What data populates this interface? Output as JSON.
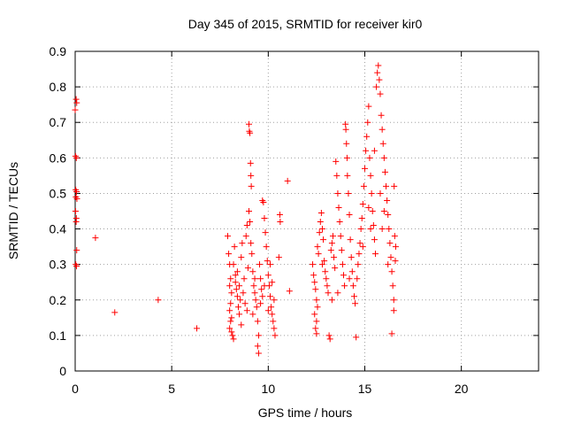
{
  "chart_data": {
    "type": "scatter",
    "title": "Day 345 of 2015, SRMTID for receiver kir0",
    "xlabel": "GPS time / hours",
    "ylabel": "SRMTID / TECUs",
    "xlim": [
      0,
      24
    ],
    "ylim": [
      0,
      0.9
    ],
    "xticks": [
      0,
      5,
      10,
      15,
      20
    ],
    "yticks": [
      0,
      0.1,
      0.2,
      0.3,
      0.4,
      0.5,
      0.6,
      0.7,
      0.8,
      0.9
    ],
    "xtick_labels": [
      "0",
      "5",
      "10",
      "15",
      "20"
    ],
    "ytick_labels": [
      "0",
      "0.1",
      "0.2",
      "0.3",
      "0.4",
      "0.5",
      "0.6",
      "0.7",
      "0.8",
      "0.9"
    ],
    "grid": true,
    "marker": "+",
    "color": "#ff0000",
    "series": [
      {
        "name": "SRMTID",
        "points": [
          [
            0.0,
            0.735
          ],
          [
            0.05,
            0.765
          ],
          [
            0.08,
            0.755
          ],
          [
            0.02,
            0.605
          ],
          [
            0.06,
            0.6
          ],
          [
            0.03,
            0.51
          ],
          [
            0.07,
            0.505
          ],
          [
            0.04,
            0.49
          ],
          [
            0.09,
            0.485
          ],
          [
            0.02,
            0.45
          ],
          [
            0.06,
            0.43
          ],
          [
            0.05,
            0.42
          ],
          [
            0.08,
            0.34
          ],
          [
            0.03,
            0.3
          ],
          [
            0.07,
            0.295
          ],
          [
            1.05,
            0.375
          ],
          [
            2.05,
            0.165
          ],
          [
            4.3,
            0.2
          ],
          [
            6.3,
            0.12
          ],
          [
            7.9,
            0.38
          ],
          [
            7.95,
            0.33
          ],
          [
            8.0,
            0.3
          ],
          [
            8.05,
            0.26
          ],
          [
            8.0,
            0.24
          ],
          [
            8.1,
            0.22
          ],
          [
            8.05,
            0.19
          ],
          [
            8.0,
            0.17
          ],
          [
            8.1,
            0.15
          ],
          [
            8.05,
            0.14
          ],
          [
            8.0,
            0.12
          ],
          [
            8.1,
            0.11
          ],
          [
            8.15,
            0.1
          ],
          [
            8.2,
            0.09
          ],
          [
            8.25,
            0.35
          ],
          [
            8.3,
            0.27
          ],
          [
            8.35,
            0.23
          ],
          [
            8.4,
            0.21
          ],
          [
            8.45,
            0.18
          ],
          [
            8.5,
            0.16
          ],
          [
            8.2,
            0.3
          ],
          [
            8.3,
            0.25
          ],
          [
            8.4,
            0.28
          ],
          [
            8.5,
            0.24
          ],
          [
            8.55,
            0.2
          ],
          [
            8.6,
            0.32
          ],
          [
            8.65,
            0.36
          ],
          [
            8.7,
            0.22
          ],
          [
            8.75,
            0.26
          ],
          [
            8.8,
            0.19
          ],
          [
            8.85,
            0.38
          ],
          [
            8.9,
            0.41
          ],
          [
            8.95,
            0.29
          ],
          [
            9.0,
            0.695
          ],
          [
            9.02,
            0.675
          ],
          [
            9.05,
            0.67
          ],
          [
            9.08,
            0.585
          ],
          [
            9.1,
            0.55
          ],
          [
            9.12,
            0.52
          ],
          [
            9.0,
            0.45
          ],
          [
            9.05,
            0.42
          ],
          [
            9.1,
            0.36
          ],
          [
            9.15,
            0.33
          ],
          [
            9.2,
            0.28
          ],
          [
            9.25,
            0.24
          ],
          [
            9.3,
            0.22
          ],
          [
            9.35,
            0.2
          ],
          [
            9.4,
            0.18
          ],
          [
            9.45,
            0.14
          ],
          [
            9.5,
            0.1
          ],
          [
            9.45,
            0.07
          ],
          [
            9.5,
            0.05
          ],
          [
            9.55,
            0.3
          ],
          [
            9.6,
            0.26
          ],
          [
            9.65,
            0.23
          ],
          [
            9.7,
            0.48
          ],
          [
            9.75,
            0.475
          ],
          [
            9.8,
            0.43
          ],
          [
            9.85,
            0.39
          ],
          [
            9.9,
            0.35
          ],
          [
            9.95,
            0.31
          ],
          [
            10.0,
            0.27
          ],
          [
            10.05,
            0.24
          ],
          [
            10.1,
            0.21
          ],
          [
            10.15,
            0.18
          ],
          [
            10.2,
            0.16
          ],
          [
            10.25,
            0.14
          ],
          [
            10.3,
            0.12
          ],
          [
            10.35,
            0.1
          ],
          [
            10.1,
            0.3
          ],
          [
            10.2,
            0.25
          ],
          [
            10.3,
            0.2
          ],
          [
            9.3,
            0.26
          ],
          [
            9.6,
            0.19
          ],
          [
            9.8,
            0.24
          ],
          [
            8.6,
            0.13
          ],
          [
            8.9,
            0.17
          ],
          [
            9.2,
            0.16
          ],
          [
            9.7,
            0.21
          ],
          [
            10.0,
            0.17
          ],
          [
            10.6,
            0.44
          ],
          [
            10.62,
            0.42
          ],
          [
            10.55,
            0.32
          ],
          [
            11.0,
            0.535
          ],
          [
            11.1,
            0.225
          ],
          [
            12.3,
            0.3
          ],
          [
            12.35,
            0.27
          ],
          [
            12.4,
            0.25
          ],
          [
            12.45,
            0.23
          ],
          [
            12.5,
            0.2
          ],
          [
            12.55,
            0.18
          ],
          [
            12.4,
            0.16
          ],
          [
            12.5,
            0.14
          ],
          [
            12.45,
            0.12
          ],
          [
            12.5,
            0.105
          ],
          [
            12.55,
            0.35
          ],
          [
            12.6,
            0.33
          ],
          [
            12.65,
            0.39
          ],
          [
            12.7,
            0.42
          ],
          [
            12.75,
            0.445
          ],
          [
            12.8,
            0.4
          ],
          [
            12.85,
            0.37
          ],
          [
            12.9,
            0.31
          ],
          [
            12.95,
            0.28
          ],
          [
            13.0,
            0.26
          ],
          [
            13.05,
            0.24
          ],
          [
            13.1,
            0.22
          ],
          [
            13.15,
            0.1
          ],
          [
            13.2,
            0.09
          ],
          [
            13.25,
            0.34
          ],
          [
            13.3,
            0.36
          ],
          [
            13.35,
            0.38
          ],
          [
            13.4,
            0.32
          ],
          [
            13.45,
            0.29
          ],
          [
            13.5,
            0.59
          ],
          [
            13.55,
            0.55
          ],
          [
            13.6,
            0.5
          ],
          [
            13.65,
            0.46
          ],
          [
            13.7,
            0.42
          ],
          [
            13.75,
            0.38
          ],
          [
            13.8,
            0.34
          ],
          [
            13.85,
            0.3
          ],
          [
            13.9,
            0.27
          ],
          [
            13.95,
            0.24
          ],
          [
            14.0,
            0.695
          ],
          [
            14.02,
            0.68
          ],
          [
            14.05,
            0.64
          ],
          [
            14.08,
            0.6
          ],
          [
            14.1,
            0.55
          ],
          [
            14.15,
            0.5
          ],
          [
            14.2,
            0.44
          ],
          [
            14.25,
            0.37
          ],
          [
            14.3,
            0.32
          ],
          [
            14.35,
            0.28
          ],
          [
            14.4,
            0.24
          ],
          [
            14.45,
            0.21
          ],
          [
            14.5,
            0.19
          ],
          [
            14.55,
            0.095
          ],
          [
            14.6,
            0.26
          ],
          [
            14.65,
            0.3
          ],
          [
            14.7,
            0.33
          ],
          [
            14.75,
            0.36
          ],
          [
            14.8,
            0.4
          ],
          [
            14.85,
            0.43
          ],
          [
            14.9,
            0.47
          ],
          [
            14.95,
            0.52
          ],
          [
            15.0,
            0.57
          ],
          [
            15.05,
            0.62
          ],
          [
            15.1,
            0.66
          ],
          [
            15.15,
            0.7
          ],
          [
            15.2,
            0.745
          ],
          [
            15.25,
            0.6
          ],
          [
            15.3,
            0.55
          ],
          [
            15.35,
            0.5
          ],
          [
            15.4,
            0.45
          ],
          [
            15.45,
            0.41
          ],
          [
            15.5,
            0.37
          ],
          [
            15.55,
            0.33
          ],
          [
            15.6,
            0.8
          ],
          [
            15.65,
            0.84
          ],
          [
            15.7,
            0.86
          ],
          [
            15.75,
            0.82
          ],
          [
            15.8,
            0.78
          ],
          [
            15.85,
            0.72
          ],
          [
            15.9,
            0.68
          ],
          [
            15.95,
            0.64
          ],
          [
            16.0,
            0.6
          ],
          [
            16.05,
            0.56
          ],
          [
            16.1,
            0.52
          ],
          [
            16.15,
            0.48
          ],
          [
            16.2,
            0.44
          ],
          [
            16.25,
            0.4
          ],
          [
            16.3,
            0.36
          ],
          [
            16.35,
            0.32
          ],
          [
            16.4,
            0.28
          ],
          [
            16.45,
            0.24
          ],
          [
            16.5,
            0.2
          ],
          [
            16.5,
            0.17
          ],
          [
            16.4,
            0.105
          ],
          [
            16.55,
            0.38
          ],
          [
            16.6,
            0.35
          ],
          [
            16.58,
            0.31
          ],
          [
            16.52,
            0.52
          ],
          [
            15.5,
            0.62
          ],
          [
            15.8,
            0.5
          ],
          [
            16.0,
            0.45
          ],
          [
            16.2,
            0.3
          ],
          [
            15.3,
            0.4
          ],
          [
            14.9,
            0.35
          ],
          [
            13.6,
            0.22
          ],
          [
            13.3,
            0.2
          ],
          [
            14.2,
            0.26
          ],
          [
            12.8,
            0.3
          ],
          [
            15.2,
            0.46
          ],
          [
            15.9,
            0.4
          ]
        ]
      }
    ]
  }
}
